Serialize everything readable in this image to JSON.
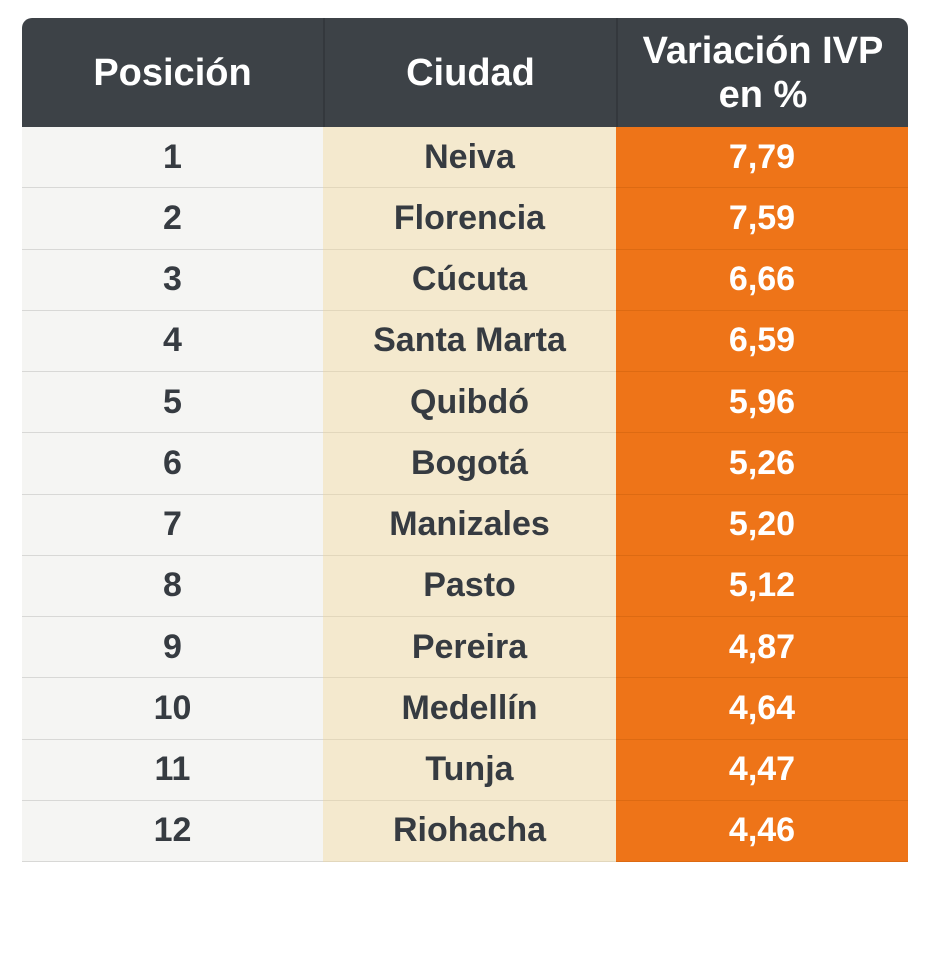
{
  "colors": {
    "header_bg": "#3d4247",
    "header_text": "#ffffff",
    "header_divider": "#34383d",
    "col_posicion_bg": "#f5f5f3",
    "col_posicion_divider": "#d8d8d6",
    "col_ciudad_bg": "#f4e9ce",
    "col_ciudad_divider": "#e2d7bc",
    "col_variacion_bg": "#ee7418",
    "col_variacion_divider": "#dd6a12",
    "body_text": "#363b41",
    "value_text": "#ffffff",
    "page_bg": "#ffffff"
  },
  "chart_data": {
    "type": "table",
    "title": "",
    "columns": [
      "Posición",
      "Ciudad",
      "Variación IVP en %"
    ],
    "header_display": {
      "col1": "Posición",
      "col2": "Ciudad",
      "col3_line1": "Variación IVP",
      "col3_line2": "en %"
    },
    "rows": [
      {
        "posicion": "1",
        "ciudad": "Neiva",
        "variacion": "7,79"
      },
      {
        "posicion": "2",
        "ciudad": "Florencia",
        "variacion": "7,59"
      },
      {
        "posicion": "3",
        "ciudad": "Cúcuta",
        "variacion": "6,66"
      },
      {
        "posicion": "4",
        "ciudad": "Santa Marta",
        "variacion": "6,59"
      },
      {
        "posicion": "5",
        "ciudad": "Quibdó",
        "variacion": "5,96"
      },
      {
        "posicion": "6",
        "ciudad": "Bogotá",
        "variacion": "5,26"
      },
      {
        "posicion": "7",
        "ciudad": "Manizales",
        "variacion": "5,20"
      },
      {
        "posicion": "8",
        "ciudad": "Pasto",
        "variacion": "5,12"
      },
      {
        "posicion": "9",
        "ciudad": "Pereira",
        "variacion": "4,87"
      },
      {
        "posicion": "10",
        "ciudad": "Medellín",
        "variacion": "4,64"
      },
      {
        "posicion": "11",
        "ciudad": "Tunja",
        "variacion": "4,47"
      },
      {
        "posicion": "12",
        "ciudad": "Riohacha",
        "variacion": "4,46"
      }
    ]
  }
}
